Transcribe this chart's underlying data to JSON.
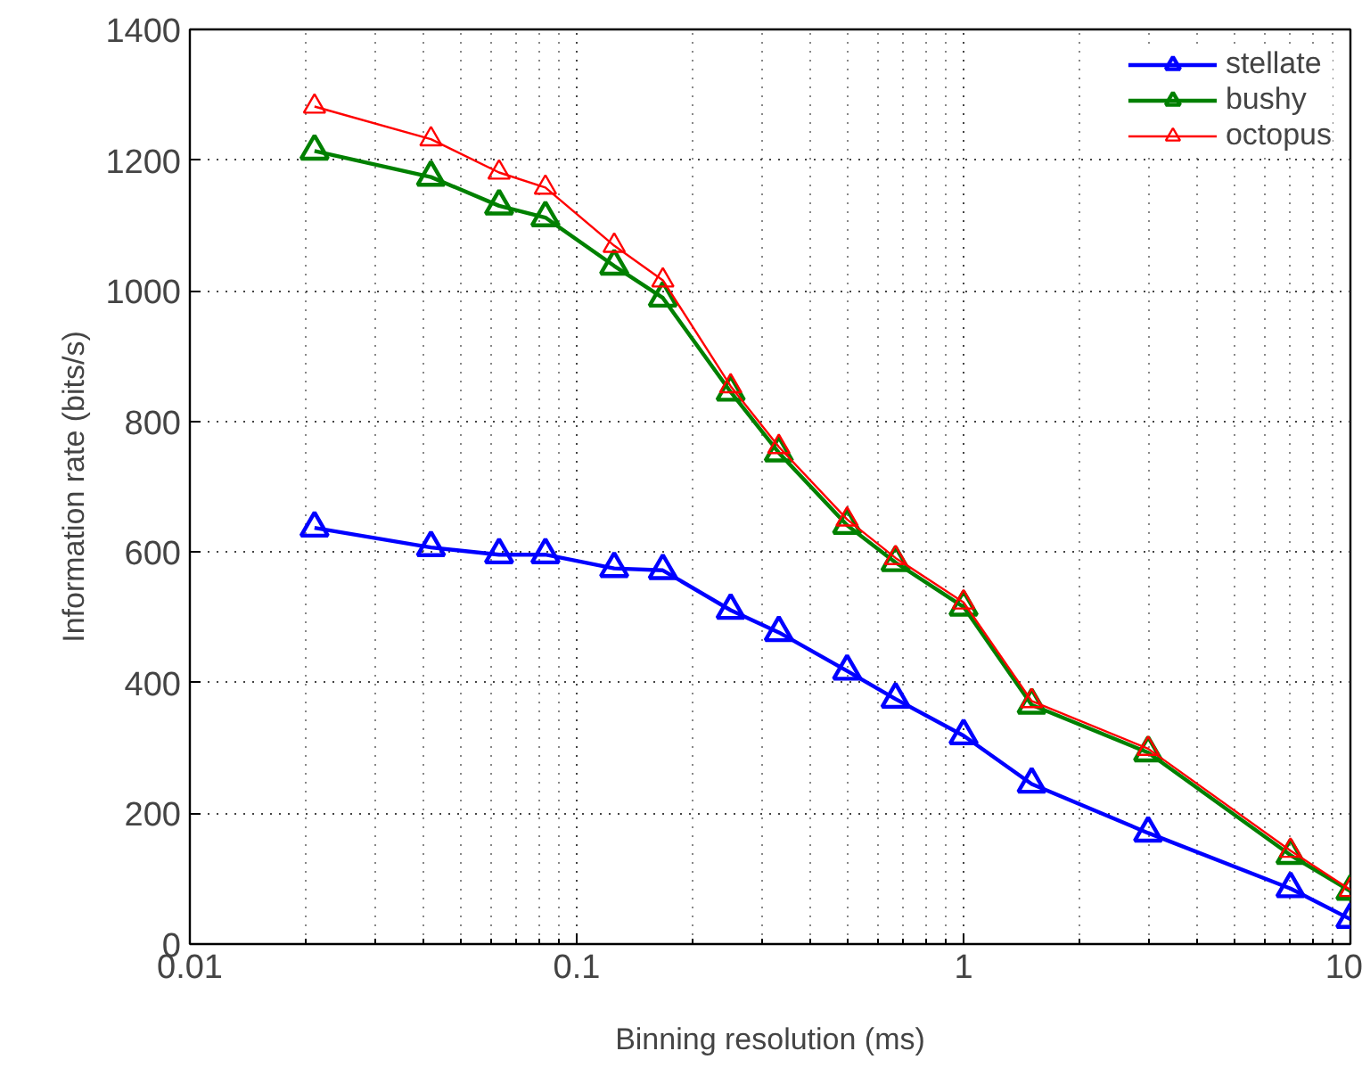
{
  "chart_data": {
    "type": "line",
    "xlabel": "Binning resolution (ms)",
    "ylabel": "Information rate (bits/s)",
    "x": [
      0.021,
      0.042,
      0.063,
      0.083,
      0.125,
      0.167,
      0.25,
      0.333,
      0.5,
      0.667,
      1,
      1.5,
      3,
      7,
      10
    ],
    "series": [
      {
        "name": "stellate",
        "color": "#0000ff",
        "values": [
          637,
          607,
          596,
          596,
          575,
          572,
          511,
          477,
          418,
          375,
          319,
          245,
          170,
          85,
          38
        ]
      },
      {
        "name": "bushy",
        "color": "#008000",
        "values": [
          1214,
          1174,
          1130,
          1112,
          1038,
          989,
          845,
          752,
          641,
          584,
          516,
          366,
          293,
          136,
          81
        ]
      },
      {
        "name": "octopus",
        "color": "#ff0000",
        "values": [
          1282,
          1232,
          1181,
          1158,
          1069,
          1016,
          854,
          761,
          650,
          591,
          523,
          372,
          299,
          143,
          83
        ]
      }
    ],
    "log": "x",
    "xlim": [
      0.01,
      10
    ],
    "xticks": [
      0.01,
      0.1,
      1,
      10
    ],
    "ylim": [
      0,
      1400
    ],
    "yticks": [
      0,
      200,
      400,
      600,
      800,
      1000,
      1200,
      1400
    ],
    "grid": true,
    "legend": "top right",
    "marker": "triangle",
    "line_style": "solid"
  }
}
